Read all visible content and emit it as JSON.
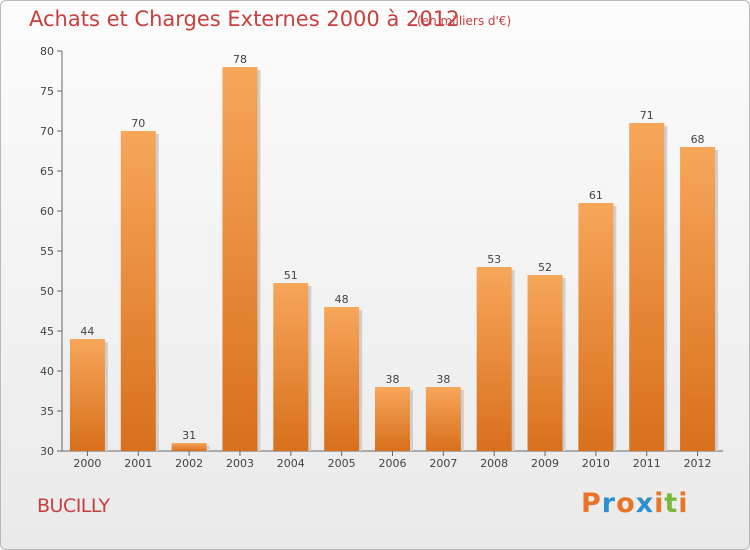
{
  "header": {
    "title": "Achats et Charges Externes 2000 à 2012",
    "subtitle": "(en milliers d'€)"
  },
  "footer": {
    "commune": "BUCILLY",
    "logo_text": "Proxiti",
    "logo_colors": [
      "#e8742a",
      "#2e8fd0",
      "#e8742a",
      "#2e8fd0",
      "#e8742a",
      "#7ab83a",
      "#e8742a"
    ]
  },
  "chart_data": {
    "type": "bar",
    "categories": [
      "2000",
      "2001",
      "2002",
      "2003",
      "2004",
      "2005",
      "2006",
      "2007",
      "2008",
      "2009",
      "2010",
      "2011",
      "2012"
    ],
    "values": [
      44,
      70,
      31,
      78,
      51,
      48,
      38,
      38,
      53,
      52,
      61,
      71,
      68
    ],
    "ylim": [
      30,
      80
    ],
    "yticks": [
      30,
      35,
      40,
      45,
      50,
      55,
      60,
      65,
      70,
      75,
      80
    ],
    "grid": false,
    "bar_color_top": "#f7a65a",
    "bar_color_bottom": "#d8701c"
  }
}
